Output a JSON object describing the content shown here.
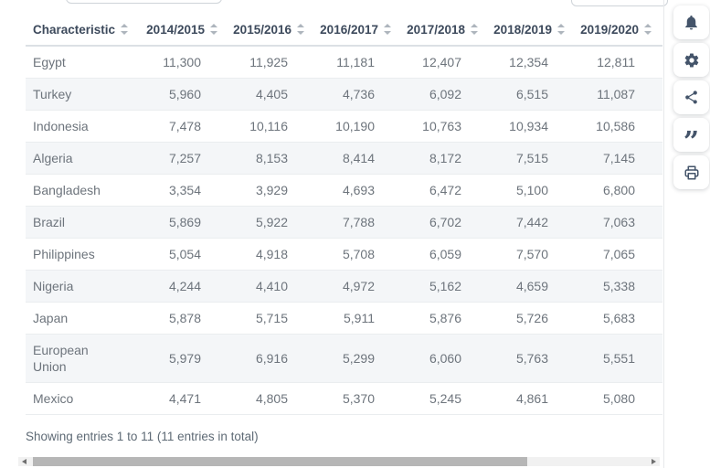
{
  "table": {
    "columns": [
      "Characteristic",
      "2014/2015",
      "2015/2016",
      "2016/2017",
      "2017/2018",
      "2018/2019",
      "2019/2020"
    ],
    "rows": [
      {
        "name": "Egypt",
        "values": [
          "11,300",
          "11,925",
          "11,181",
          "12,407",
          "12,354",
          "12,811"
        ]
      },
      {
        "name": "Turkey",
        "values": [
          "5,960",
          "4,405",
          "4,736",
          "6,092",
          "6,515",
          "11,087"
        ]
      },
      {
        "name": "Indonesia",
        "values": [
          "7,478",
          "10,116",
          "10,190",
          "10,763",
          "10,934",
          "10,586"
        ]
      },
      {
        "name": "Algeria",
        "values": [
          "7,257",
          "8,153",
          "8,414",
          "8,172",
          "7,515",
          "7,145"
        ]
      },
      {
        "name": "Bangladesh",
        "values": [
          "3,354",
          "3,929",
          "4,693",
          "6,472",
          "5,100",
          "6,800"
        ]
      },
      {
        "name": "Brazil",
        "values": [
          "5,869",
          "5,922",
          "7,788",
          "6,702",
          "7,442",
          "7,063"
        ]
      },
      {
        "name": "Philippines",
        "values": [
          "5,054",
          "4,918",
          "5,708",
          "6,059",
          "7,570",
          "7,065"
        ]
      },
      {
        "name": "Nigeria",
        "values": [
          "4,244",
          "4,410",
          "4,972",
          "5,162",
          "4,659",
          "5,338"
        ]
      },
      {
        "name": "Japan",
        "values": [
          "5,878",
          "5,715",
          "5,911",
          "5,876",
          "5,726",
          "5,683"
        ]
      },
      {
        "name": "European Union",
        "values": [
          "5,979",
          "6,916",
          "5,299",
          "6,060",
          "5,763",
          "5,551"
        ]
      },
      {
        "name": "Mexico",
        "values": [
          "4,471",
          "4,805",
          "5,370",
          "5,245",
          "4,861",
          "5,080"
        ]
      }
    ],
    "footer": "Showing entries 1 to 11 (11 entries in total)"
  },
  "toolbar": {
    "icons": [
      "bell",
      "gear",
      "share",
      "quote",
      "print"
    ]
  },
  "colors": {
    "header_text": "#3d4a5c",
    "cell_text": "#6d747c",
    "row_stripe": "#f4f6f8",
    "icon": "#44546a",
    "scroll_thumb": "#b6b6b6",
    "scroll_track": "#f1f1f1"
  }
}
